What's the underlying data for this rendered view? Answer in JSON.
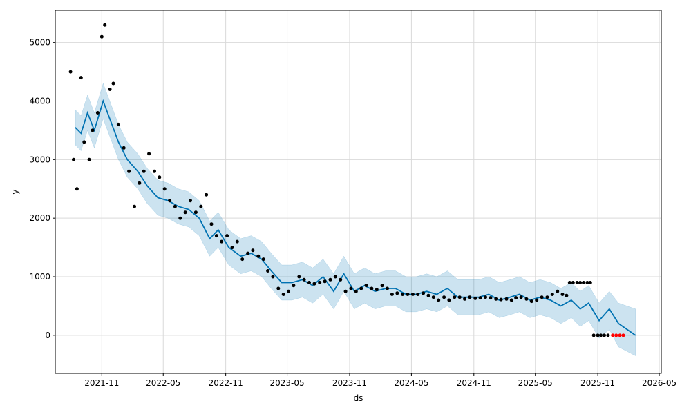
{
  "chart_data": {
    "type": "line",
    "title": "",
    "xlabel": "ds",
    "ylabel": "y",
    "xlim": [
      "2021-06-17",
      "2026-05-07"
    ],
    "ylim": [
      -650,
      5550
    ],
    "grid": true,
    "legend": "none",
    "x_ticks": [
      "2021-11",
      "2022-05",
      "2022-11",
      "2023-05",
      "2023-11",
      "2024-05",
      "2024-11",
      "2025-05",
      "2025-11",
      "2026-05"
    ],
    "y_ticks": [
      0,
      1000,
      2000,
      3000,
      4000,
      5000
    ],
    "colors": {
      "observed": "#000000",
      "forecast_line": "#0072B2",
      "uncertainty_band": "#0072B2",
      "highlight_points": "#FF0000",
      "grid": "#d9d9d9"
    },
    "series": [
      {
        "role": "forecast",
        "x": [
          "2021-08-15",
          "2021-09-01",
          "2021-09-20",
          "2021-10-10",
          "2021-11-05",
          "2021-12-01",
          "2021-12-20",
          "2022-01-15",
          "2022-02-15",
          "2022-03-15",
          "2022-04-15",
          "2022-05-15",
          "2022-06-15",
          "2022-07-15",
          "2022-08-15",
          "2022-09-15",
          "2022-10-10",
          "2022-11-10",
          "2022-12-15",
          "2023-01-15",
          "2023-02-15",
          "2023-03-15",
          "2023-04-15",
          "2023-05-15",
          "2023-06-15",
          "2023-07-15",
          "2023-08-15",
          "2023-09-15",
          "2023-10-15",
          "2023-11-15",
          "2023-12-15",
          "2024-01-15",
          "2024-02-15",
          "2024-03-15",
          "2024-04-15",
          "2024-05-15",
          "2024-06-15",
          "2024-07-15",
          "2024-08-15",
          "2024-09-15",
          "2024-10-15",
          "2024-11-15",
          "2024-12-15",
          "2025-01-15",
          "2025-02-15",
          "2025-03-15",
          "2025-04-15",
          "2025-05-15",
          "2025-06-15",
          "2025-07-15",
          "2025-08-15",
          "2025-09-10",
          "2025-10-05",
          "2025-11-05",
          "2025-12-05",
          "2026-01-01",
          "2026-02-20"
        ],
        "y": [
          3550,
          3450,
          3800,
          3500,
          4000,
          3600,
          3300,
          3000,
          2800,
          2550,
          2350,
          2300,
          2200,
          2150,
          2000,
          1650,
          1800,
          1500,
          1350,
          1400,
          1300,
          1100,
          900,
          900,
          950,
          850,
          1000,
          750,
          1050,
          750,
          850,
          750,
          800,
          800,
          700,
          700,
          750,
          700,
          800,
          650,
          650,
          650,
          700,
          600,
          650,
          700,
          600,
          650,
          600,
          500,
          600,
          450,
          550,
          250,
          450,
          200,
          0
        ],
        "lower": [
          3250,
          3150,
          3500,
          3200,
          3700,
          3300,
          3000,
          2700,
          2500,
          2250,
          2050,
          2000,
          1900,
          1850,
          1700,
          1350,
          1500,
          1200,
          1050,
          1100,
          1000,
          800,
          600,
          600,
          650,
          550,
          700,
          450,
          750,
          450,
          550,
          450,
          500,
          500,
          400,
          400,
          450,
          400,
          500,
          350,
          350,
          350,
          400,
          300,
          350,
          400,
          300,
          350,
          300,
          200,
          300,
          150,
          250,
          -50,
          100,
          -200,
          -350
        ],
        "upper": [
          3850,
          3750,
          4100,
          3800,
          4300,
          3900,
          3600,
          3300,
          3100,
          2850,
          2650,
          2600,
          2500,
          2450,
          2300,
          1950,
          2100,
          1800,
          1650,
          1700,
          1600,
          1400,
          1200,
          1200,
          1250,
          1150,
          1300,
          1050,
          1350,
          1050,
          1150,
          1050,
          1100,
          1100,
          1000,
          1000,
          1050,
          1000,
          1100,
          950,
          950,
          950,
          1000,
          900,
          950,
          1000,
          900,
          950,
          900,
          800,
          900,
          750,
          850,
          550,
          750,
          550,
          450
        ]
      },
      {
        "role": "observed",
        "x": [
          "2021-08-01",
          "2021-08-10",
          "2021-08-20",
          "2021-09-01",
          "2021-09-10",
          "2021-09-25",
          "2021-10-05",
          "2021-10-20",
          "2021-11-01",
          "2021-11-10",
          "2021-11-25",
          "2021-12-05",
          "2021-12-20",
          "2022-01-05",
          "2022-01-20",
          "2022-02-05",
          "2022-02-20",
          "2022-03-05",
          "2022-03-20",
          "2022-04-05",
          "2022-04-20",
          "2022-05-05",
          "2022-05-20",
          "2022-06-05",
          "2022-06-20",
          "2022-07-05",
          "2022-07-20",
          "2022-08-05",
          "2022-08-20",
          "2022-09-05",
          "2022-09-20",
          "2022-10-05",
          "2022-10-20",
          "2022-11-05",
          "2022-11-20",
          "2022-12-05",
          "2022-12-20",
          "2023-01-05",
          "2023-01-20",
          "2023-02-05",
          "2023-02-20",
          "2023-03-05",
          "2023-03-20",
          "2023-04-05",
          "2023-04-20",
          "2023-05-05",
          "2023-05-20",
          "2023-06-05",
          "2023-06-20",
          "2023-07-05",
          "2023-07-20",
          "2023-08-05",
          "2023-08-20",
          "2023-09-05",
          "2023-09-20",
          "2023-10-05",
          "2023-10-20",
          "2023-11-05",
          "2023-11-20",
          "2023-12-05",
          "2023-12-20",
          "2024-01-05",
          "2024-01-20",
          "2024-02-05",
          "2024-02-20",
          "2024-03-05",
          "2024-03-20",
          "2024-04-05",
          "2024-04-20",
          "2024-05-05",
          "2024-05-20",
          "2024-06-05",
          "2024-06-20",
          "2024-07-05",
          "2024-07-20",
          "2024-08-05",
          "2024-08-20",
          "2024-09-05",
          "2024-09-20",
          "2024-10-05",
          "2024-10-20",
          "2024-11-05",
          "2024-11-20",
          "2024-12-05",
          "2024-12-20",
          "2025-01-05",
          "2025-01-20",
          "2025-02-05",
          "2025-02-20",
          "2025-03-05",
          "2025-03-20",
          "2025-04-05",
          "2025-04-20",
          "2025-05-05",
          "2025-05-20",
          "2025-06-05",
          "2025-06-20",
          "2025-07-05",
          "2025-07-20",
          "2025-08-01",
          "2025-08-10",
          "2025-08-20",
          "2025-09-01",
          "2025-09-10",
          "2025-09-20",
          "2025-10-01",
          "2025-10-10",
          "2025-10-20",
          "2025-11-01",
          "2025-11-10",
          "2025-11-20",
          "2025-12-01"
        ],
        "y": [
          4500,
          3000,
          2500,
          4400,
          3300,
          3000,
          3500,
          3800,
          5100,
          5300,
          4200,
          4300,
          3600,
          3200,
          2800,
          2200,
          2600,
          2800,
          3100,
          2800,
          2700,
          2500,
          2300,
          2200,
          2000,
          2100,
          2300,
          2100,
          2200,
          2400,
          1900,
          1700,
          1600,
          1700,
          1500,
          1600,
          1300,
          1400,
          1450,
          1350,
          1300,
          1100,
          1000,
          800,
          700,
          750,
          850,
          1000,
          950,
          900,
          880,
          900,
          920,
          950,
          1000,
          950,
          750,
          800,
          750,
          800,
          850,
          800,
          780,
          850,
          800,
          700,
          720,
          700,
          700,
          700,
          700,
          720,
          680,
          650,
          600,
          650,
          600,
          650,
          650,
          620,
          650,
          630,
          640,
          650,
          640,
          620,
          610,
          620,
          600,
          640,
          650,
          620,
          580,
          600,
          650,
          650,
          700,
          750,
          700,
          680,
          900,
          900,
          900,
          900,
          900,
          900,
          900,
          0,
          0,
          0,
          0,
          0
        ]
      },
      {
        "role": "highlight",
        "x": [
          "2025-12-15",
          "2025-12-25",
          "2026-01-05",
          "2026-01-15"
        ],
        "y": [
          0,
          0,
          0,
          0
        ]
      }
    ]
  }
}
